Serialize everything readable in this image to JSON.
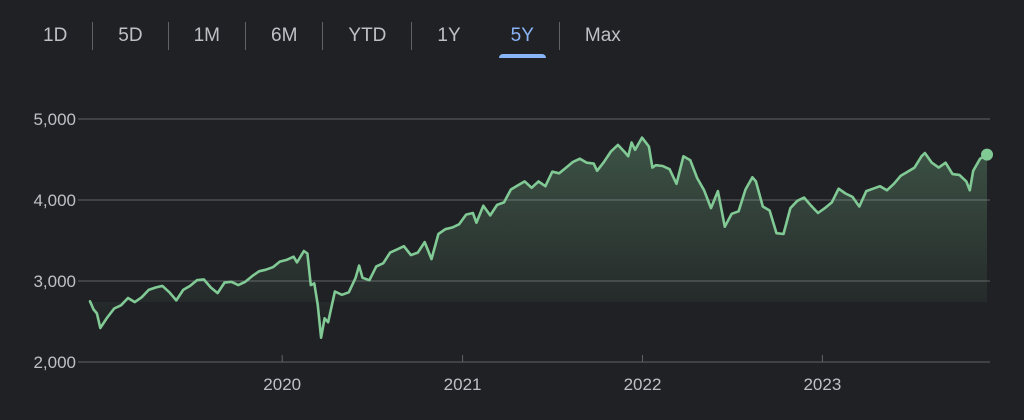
{
  "range_tabs": [
    {
      "label": "1D",
      "active": false
    },
    {
      "label": "5D",
      "active": false
    },
    {
      "label": "1M",
      "active": false
    },
    {
      "label": "6M",
      "active": false
    },
    {
      "label": "YTD",
      "active": false
    },
    {
      "label": "1Y",
      "active": false
    },
    {
      "label": "5Y",
      "active": true
    },
    {
      "label": "Max",
      "active": false
    }
  ],
  "colors": {
    "background": "#202124",
    "line": "#81c995",
    "grid": "#5f6368",
    "tick_text": "#bdc1c6",
    "active_tab": "#8ab4f8"
  },
  "chart_data": {
    "type": "area",
    "title": "",
    "xlabel": "",
    "ylabel": "",
    "ylim": [
      2000,
      5000
    ],
    "xlim": [
      "2018-12-07",
      "2023-12-01"
    ],
    "y_ticks": [
      {
        "value": 5000,
        "label": "5,000"
      },
      {
        "value": 4000,
        "label": "4,000"
      },
      {
        "value": 3000,
        "label": "3,000"
      },
      {
        "value": 2000,
        "label": "2,000"
      }
    ],
    "x_ticks": [
      {
        "value": "2020-01-01",
        "label": "2020"
      },
      {
        "value": "2021-01-01",
        "label": "2021"
      },
      {
        "value": "2022-01-01",
        "label": "2022"
      },
      {
        "value": "2023-01-01",
        "label": "2023"
      }
    ],
    "grid": true,
    "points": [
      [
        "2018-12-07",
        2750
      ],
      [
        "2018-12-14",
        2650
      ],
      [
        "2018-12-21",
        2600
      ],
      [
        "2018-12-28",
        2420
      ],
      [
        "2019-01-11",
        2550
      ],
      [
        "2019-01-25",
        2660
      ],
      [
        "2019-02-08",
        2700
      ],
      [
        "2019-02-22",
        2790
      ],
      [
        "2019-03-08",
        2740
      ],
      [
        "2019-03-22",
        2800
      ],
      [
        "2019-04-05",
        2890
      ],
      [
        "2019-04-19",
        2920
      ],
      [
        "2019-05-03",
        2940
      ],
      [
        "2019-05-17",
        2860
      ],
      [
        "2019-05-31",
        2760
      ],
      [
        "2019-06-14",
        2890
      ],
      [
        "2019-06-28",
        2940
      ],
      [
        "2019-07-12",
        3010
      ],
      [
        "2019-07-26",
        3020
      ],
      [
        "2019-08-09",
        2920
      ],
      [
        "2019-08-23",
        2850
      ],
      [
        "2019-09-06",
        2980
      ],
      [
        "2019-09-20",
        2990
      ],
      [
        "2019-10-04",
        2950
      ],
      [
        "2019-10-18",
        2990
      ],
      [
        "2019-11-01",
        3060
      ],
      [
        "2019-11-15",
        3120
      ],
      [
        "2019-11-29",
        3140
      ],
      [
        "2019-12-13",
        3170
      ],
      [
        "2019-12-27",
        3240
      ],
      [
        "2020-01-10",
        3260
      ],
      [
        "2020-01-24",
        3300
      ],
      [
        "2020-01-31",
        3230
      ],
      [
        "2020-02-14",
        3370
      ],
      [
        "2020-02-21",
        3340
      ],
      [
        "2020-02-28",
        2950
      ],
      [
        "2020-03-06",
        2970
      ],
      [
        "2020-03-13",
        2710
      ],
      [
        "2020-03-20",
        2300
      ],
      [
        "2020-03-27",
        2540
      ],
      [
        "2020-04-03",
        2490
      ],
      [
        "2020-04-17",
        2870
      ],
      [
        "2020-05-01",
        2830
      ],
      [
        "2020-05-15",
        2860
      ],
      [
        "2020-05-29",
        3040
      ],
      [
        "2020-06-05",
        3190
      ],
      [
        "2020-06-12",
        3040
      ],
      [
        "2020-06-26",
        3010
      ],
      [
        "2020-07-10",
        3180
      ],
      [
        "2020-07-24",
        3220
      ],
      [
        "2020-08-07",
        3350
      ],
      [
        "2020-08-21",
        3390
      ],
      [
        "2020-09-04",
        3430
      ],
      [
        "2020-09-18",
        3320
      ],
      [
        "2020-10-02",
        3350
      ],
      [
        "2020-10-16",
        3480
      ],
      [
        "2020-10-30",
        3270
      ],
      [
        "2020-11-13",
        3580
      ],
      [
        "2020-11-27",
        3640
      ],
      [
        "2020-12-11",
        3660
      ],
      [
        "2020-12-25",
        3700
      ],
      [
        "2021-01-08",
        3820
      ],
      [
        "2021-01-22",
        3840
      ],
      [
        "2021-01-29",
        3720
      ],
      [
        "2021-02-12",
        3930
      ],
      [
        "2021-02-26",
        3810
      ],
      [
        "2021-03-12",
        3940
      ],
      [
        "2021-03-26",
        3970
      ],
      [
        "2021-04-09",
        4130
      ],
      [
        "2021-04-23",
        4180
      ],
      [
        "2021-05-07",
        4230
      ],
      [
        "2021-05-21",
        4150
      ],
      [
        "2021-06-04",
        4230
      ],
      [
        "2021-06-18",
        4170
      ],
      [
        "2021-07-02",
        4350
      ],
      [
        "2021-07-16",
        4330
      ],
      [
        "2021-07-30",
        4400
      ],
      [
        "2021-08-13",
        4470
      ],
      [
        "2021-08-27",
        4510
      ],
      [
        "2021-09-10",
        4460
      ],
      [
        "2021-09-24",
        4450
      ],
      [
        "2021-10-01",
        4360
      ],
      [
        "2021-10-15",
        4470
      ],
      [
        "2021-10-29",
        4600
      ],
      [
        "2021-11-12",
        4680
      ],
      [
        "2021-11-26",
        4590
      ],
      [
        "2021-12-03",
        4540
      ],
      [
        "2021-12-10",
        4710
      ],
      [
        "2021-12-17",
        4620
      ],
      [
        "2021-12-31",
        4770
      ],
      [
        "2022-01-14",
        4660
      ],
      [
        "2022-01-21",
        4400
      ],
      [
        "2022-01-28",
        4430
      ],
      [
        "2022-02-11",
        4420
      ],
      [
        "2022-02-25",
        4380
      ],
      [
        "2022-03-11",
        4200
      ],
      [
        "2022-03-25",
        4540
      ],
      [
        "2022-04-08",
        4490
      ],
      [
        "2022-04-22",
        4270
      ],
      [
        "2022-05-06",
        4120
      ],
      [
        "2022-05-20",
        3900
      ],
      [
        "2022-06-03",
        4110
      ],
      [
        "2022-06-17",
        3670
      ],
      [
        "2022-07-01",
        3830
      ],
      [
        "2022-07-15",
        3860
      ],
      [
        "2022-07-29",
        4130
      ],
      [
        "2022-08-12",
        4280
      ],
      [
        "2022-08-19",
        4230
      ],
      [
        "2022-09-02",
        3920
      ],
      [
        "2022-09-16",
        3870
      ],
      [
        "2022-09-30",
        3590
      ],
      [
        "2022-10-14",
        3580
      ],
      [
        "2022-10-28",
        3900
      ],
      [
        "2022-11-11",
        3990
      ],
      [
        "2022-11-25",
        4030
      ],
      [
        "2022-12-09",
        3930
      ],
      [
        "2022-12-23",
        3840
      ],
      [
        "2023-01-06",
        3900
      ],
      [
        "2023-01-20",
        3970
      ],
      [
        "2023-02-03",
        4140
      ],
      [
        "2023-02-17",
        4080
      ],
      [
        "2023-03-03",
        4040
      ],
      [
        "2023-03-17",
        3920
      ],
      [
        "2023-03-31",
        4110
      ],
      [
        "2023-04-14",
        4140
      ],
      [
        "2023-04-28",
        4170
      ],
      [
        "2023-05-12",
        4120
      ],
      [
        "2023-05-26",
        4200
      ],
      [
        "2023-06-09",
        4300
      ],
      [
        "2023-06-23",
        4350
      ],
      [
        "2023-07-07",
        4400
      ],
      [
        "2023-07-21",
        4540
      ],
      [
        "2023-07-28",
        4580
      ],
      [
        "2023-08-11",
        4460
      ],
      [
        "2023-08-25",
        4400
      ],
      [
        "2023-09-08",
        4460
      ],
      [
        "2023-09-22",
        4320
      ],
      [
        "2023-10-06",
        4310
      ],
      [
        "2023-10-20",
        4230
      ],
      [
        "2023-10-27",
        4120
      ],
      [
        "2023-11-03",
        4360
      ],
      [
        "2023-11-17",
        4510
      ],
      [
        "2023-12-01",
        4560
      ]
    ]
  }
}
